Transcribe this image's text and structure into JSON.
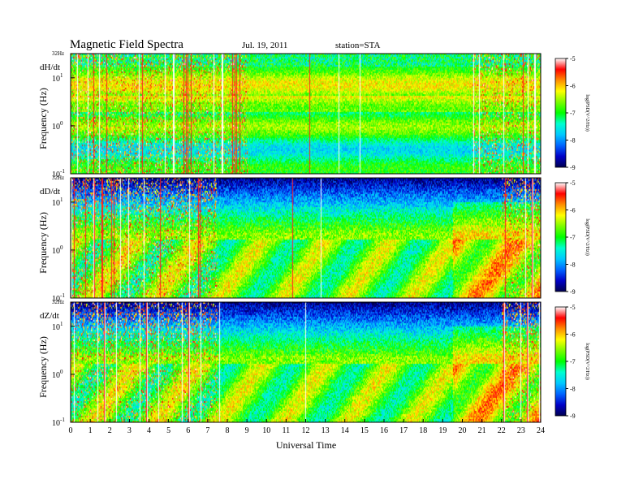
{
  "header": {
    "title": "Magnetic Field Spectra",
    "date": "Jul. 19, 2011",
    "station": "station=STA"
  },
  "chart_data": {
    "type": "heatmap",
    "xlabel": "Universal Time",
    "ylabel": "Frequency (Hz)",
    "xlim": [
      0,
      24
    ],
    "x_ticks": [
      "0",
      "1",
      "2",
      "3",
      "4",
      "5",
      "6",
      "7",
      "8",
      "9",
      "10",
      "11",
      "12",
      "13",
      "14",
      "15",
      "16",
      "17",
      "18",
      "19",
      "20",
      "21",
      "22",
      "23",
      "24"
    ],
    "y_scale": "log",
    "ylim": [
      0.1,
      32
    ],
    "y_top_label": "32Hz",
    "y_ticks": [
      {
        "value": 10,
        "base": "10",
        "exp": "1"
      },
      {
        "value": 1,
        "base": "10",
        "exp": "0"
      },
      {
        "value": 0.1,
        "base": "10",
        "exp": "-1"
      }
    ],
    "colorbar": {
      "label": "log(PSD(V^2/Hz))",
      "range": [
        -9,
        -5
      ],
      "ticks": [
        "-5",
        "-6",
        "-7",
        "-8",
        "-9"
      ],
      "colors": [
        "#ffffff",
        "#ff0000",
        "#ff8c00",
        "#ffff00",
        "#7cfc00",
        "#00ff00",
        "#00ffd0",
        "#00c8ff",
        "#0064ff",
        "#0000c8",
        "#000050"
      ]
    },
    "panels": [
      {
        "component": "dH/dt"
      },
      {
        "component": "dD/dt"
      },
      {
        "component": "dZ/dt"
      }
    ]
  }
}
